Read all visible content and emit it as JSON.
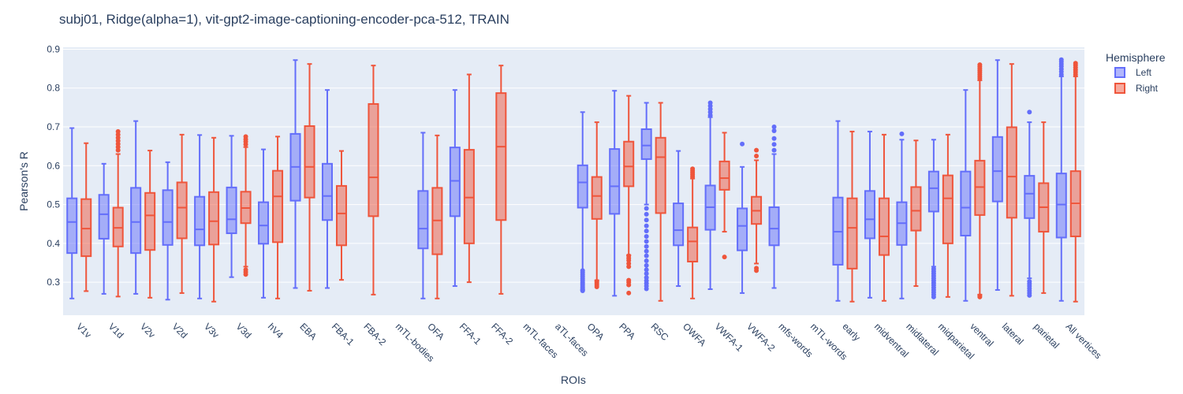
{
  "chart_data": {
    "type": "box",
    "title": "subj01, Ridge(alpha=1), vit-gpt2-image-captioning-encoder-pca-512, TRAIN",
    "xlabel": "ROIs",
    "ylabel": "Pearson's R",
    "ylim": [
      0.215,
      0.905
    ],
    "yticks": [
      0.3,
      0.4,
      0.5,
      0.6,
      0.7,
      0.8,
      0.9
    ],
    "ytick_labels": [
      "0.3",
      "0.4",
      "0.5",
      "0.6",
      "0.7",
      "0.8",
      "0.9"
    ],
    "grid": true,
    "legend_position": "top-right",
    "legend_title": "Hemisphere",
    "categories": [
      "V1v",
      "V1d",
      "V2v",
      "V2d",
      "V3v",
      "V3d",
      "hV4",
      "EBA",
      "FBA-1",
      "FBA-2",
      "mTL-bodies",
      "OFA",
      "FFA-1",
      "FFA-2",
      "mTL-faces",
      "aTL-faces",
      "OPA",
      "PPA",
      "RSC",
      "OWFA",
      "VWFA-1",
      "VWFA-2",
      "mfs-words",
      "mTL-words",
      "early",
      "midventral",
      "midlateral",
      "midparietal",
      "ventral",
      "lateral",
      "parietal",
      "All vertices"
    ],
    "series": [
      {
        "name": "Left",
        "color": "#636efa",
        "fill": "rgba(99,110,250,0.5)",
        "boxes": [
          {
            "min": 0.258,
            "q1": 0.375,
            "median": 0.455,
            "q3": 0.516,
            "max": 0.697,
            "outliers": []
          },
          {
            "min": 0.27,
            "q1": 0.412,
            "median": 0.475,
            "q3": 0.525,
            "max": 0.605,
            "outliers": []
          },
          {
            "min": 0.27,
            "q1": 0.375,
            "median": 0.455,
            "q3": 0.543,
            "max": 0.715,
            "outliers": []
          },
          {
            "min": 0.255,
            "q1": 0.396,
            "median": 0.455,
            "q3": 0.537,
            "max": 0.609,
            "outliers": []
          },
          {
            "min": 0.258,
            "q1": 0.395,
            "median": 0.436,
            "q3": 0.52,
            "max": 0.679,
            "outliers": []
          },
          {
            "min": 0.313,
            "q1": 0.426,
            "median": 0.462,
            "q3": 0.544,
            "max": 0.677,
            "outliers": []
          },
          {
            "min": 0.26,
            "q1": 0.399,
            "median": 0.446,
            "q3": 0.506,
            "max": 0.642,
            "outliers": []
          },
          {
            "min": 0.285,
            "q1": 0.51,
            "median": 0.597,
            "q3": 0.682,
            "max": 0.872,
            "outliers": []
          },
          {
            "min": 0.285,
            "q1": 0.46,
            "median": 0.522,
            "q3": 0.605,
            "max": 0.795,
            "outliers": []
          },
          null,
          null,
          {
            "min": 0.258,
            "q1": 0.387,
            "median": 0.438,
            "q3": 0.535,
            "max": 0.685,
            "outliers": []
          },
          {
            "min": 0.29,
            "q1": 0.47,
            "median": 0.561,
            "q3": 0.647,
            "max": 0.795,
            "outliers": []
          },
          null,
          null,
          null,
          {
            "min": 0.28,
            "q1": 0.492,
            "median": 0.557,
            "q3": 0.601,
            "max": 0.738,
            "outliers": [
              0.278,
              0.282,
              0.285,
              0.288,
              0.292,
              0.296,
              0.3,
              0.305,
              0.31,
              0.315,
              0.32,
              0.325,
              0.33
            ]
          },
          {
            "min": 0.265,
            "q1": 0.476,
            "median": 0.547,
            "q3": 0.643,
            "max": 0.793,
            "outliers": []
          },
          {
            "min": 0.5,
            "q1": 0.617,
            "median": 0.652,
            "q3": 0.694,
            "max": 0.762,
            "outliers": [
              0.283,
              0.29,
              0.297,
              0.304,
              0.312,
              0.322,
              0.332,
              0.343,
              0.355,
              0.368,
              0.38,
              0.392,
              0.405,
              0.418,
              0.432,
              0.445,
              0.46,
              0.475,
              0.49
            ]
          },
          {
            "min": 0.29,
            "q1": 0.395,
            "median": 0.434,
            "q3": 0.503,
            "max": 0.638,
            "outliers": []
          },
          {
            "min": 0.282,
            "q1": 0.435,
            "median": 0.493,
            "q3": 0.549,
            "max": 0.725,
            "outliers": [
              0.73,
              0.738,
              0.746,
              0.754,
              0.762
            ]
          },
          {
            "min": 0.272,
            "q1": 0.382,
            "median": 0.445,
            "q3": 0.49,
            "max": 0.597,
            "outliers": [
              0.656
            ]
          },
          {
            "min": 0.285,
            "q1": 0.395,
            "median": 0.438,
            "q3": 0.493,
            "max": 0.63,
            "outliers": [
              0.64,
              0.655,
              0.67,
              0.69,
              0.7
            ]
          },
          null,
          {
            "min": 0.252,
            "q1": 0.345,
            "median": 0.43,
            "q3": 0.518,
            "max": 0.715,
            "outliers": []
          },
          {
            "min": 0.26,
            "q1": 0.413,
            "median": 0.462,
            "q3": 0.535,
            "max": 0.688,
            "outliers": []
          },
          {
            "min": 0.258,
            "q1": 0.396,
            "median": 0.452,
            "q3": 0.506,
            "max": 0.667,
            "outliers": [
              0.682
            ]
          },
          {
            "min": 0.34,
            "q1": 0.482,
            "median": 0.542,
            "q3": 0.585,
            "max": 0.667,
            "outliers": [
              0.262,
              0.268,
              0.274,
              0.28,
              0.286,
              0.292,
              0.298,
              0.304,
              0.31,
              0.316,
              0.322,
              0.328,
              0.334
            ]
          },
          {
            "min": 0.252,
            "q1": 0.42,
            "median": 0.492,
            "q3": 0.585,
            "max": 0.795,
            "outliers": []
          },
          {
            "min": 0.28,
            "q1": 0.508,
            "median": 0.586,
            "q3": 0.674,
            "max": 0.872,
            "outliers": []
          },
          {
            "min": 0.31,
            "q1": 0.465,
            "median": 0.528,
            "q3": 0.574,
            "max": 0.712,
            "outliers": [
              0.266,
              0.272,
              0.278,
              0.284,
              0.29,
              0.296,
              0.302,
              0.738
            ]
          },
          {
            "min": 0.252,
            "q1": 0.415,
            "median": 0.5,
            "q3": 0.58,
            "max": 0.83,
            "outliers": [
              0.835,
              0.842,
              0.849,
              0.856,
              0.862,
              0.868,
              0.873
            ]
          }
        ]
      },
      {
        "name": "Right",
        "color": "#ef553b",
        "fill": "rgba(239,85,59,0.5)",
        "boxes": [
          {
            "min": 0.277,
            "q1": 0.367,
            "median": 0.438,
            "q3": 0.514,
            "max": 0.658,
            "outliers": []
          },
          {
            "min": 0.263,
            "q1": 0.392,
            "median": 0.44,
            "q3": 0.492,
            "max": 0.63,
            "outliers": [
              0.64,
              0.648,
              0.656,
              0.664,
              0.672,
              0.68,
              0.688
            ]
          },
          {
            "min": 0.26,
            "q1": 0.383,
            "median": 0.472,
            "q3": 0.53,
            "max": 0.639,
            "outliers": []
          },
          {
            "min": 0.272,
            "q1": 0.413,
            "median": 0.492,
            "q3": 0.557,
            "max": 0.68,
            "outliers": []
          },
          {
            "min": 0.25,
            "q1": 0.397,
            "median": 0.457,
            "q3": 0.532,
            "max": 0.672,
            "outliers": []
          },
          {
            "min": 0.34,
            "q1": 0.452,
            "median": 0.491,
            "q3": 0.533,
            "max": 0.648,
            "outliers": [
              0.32,
              0.326,
              0.332,
              0.655,
              0.662,
              0.668,
              0.675
            ]
          },
          {
            "min": 0.258,
            "q1": 0.403,
            "median": 0.521,
            "q3": 0.587,
            "max": 0.675,
            "outliers": []
          },
          {
            "min": 0.278,
            "q1": 0.518,
            "median": 0.597,
            "q3": 0.702,
            "max": 0.862,
            "outliers": []
          },
          {
            "min": 0.306,
            "q1": 0.395,
            "median": 0.477,
            "q3": 0.548,
            "max": 0.638,
            "outliers": []
          },
          {
            "min": 0.268,
            "q1": 0.47,
            "median": 0.57,
            "q3": 0.759,
            "max": 0.858,
            "outliers": []
          },
          null,
          {
            "min": 0.258,
            "q1": 0.372,
            "median": 0.459,
            "q3": 0.543,
            "max": 0.678,
            "outliers": []
          },
          {
            "min": 0.3,
            "q1": 0.4,
            "median": 0.518,
            "q3": 0.641,
            "max": 0.835,
            "outliers": []
          },
          {
            "min": 0.27,
            "q1": 0.46,
            "median": 0.649,
            "q3": 0.787,
            "max": 0.858,
            "outliers": []
          },
          null,
          null,
          {
            "min": 0.305,
            "q1": 0.463,
            "median": 0.522,
            "q3": 0.571,
            "max": 0.712,
            "outliers": [
              0.288,
              0.293,
              0.298,
              0.302
            ]
          },
          {
            "min": 0.37,
            "q1": 0.547,
            "median": 0.598,
            "q3": 0.662,
            "max": 0.78,
            "outliers": [
              0.272,
              0.293,
              0.3,
              0.305,
              0.34,
              0.348,
              0.356,
              0.362,
              0.368
            ]
          },
          {
            "min": 0.252,
            "q1": 0.478,
            "median": 0.622,
            "q3": 0.672,
            "max": 0.762,
            "outliers": []
          },
          {
            "min": 0.258,
            "q1": 0.353,
            "median": 0.405,
            "q3": 0.441,
            "max": 0.567,
            "outliers": [
              0.572,
              0.577,
              0.582,
              0.587,
              0.592
            ]
          },
          {
            "min": 0.43,
            "q1": 0.538,
            "median": 0.568,
            "q3": 0.611,
            "max": 0.685,
            "outliers": [
              0.365
            ]
          },
          {
            "min": 0.348,
            "q1": 0.45,
            "median": 0.484,
            "q3": 0.52,
            "max": 0.614,
            "outliers": [
              0.33,
              0.336,
              0.625,
              0.64
            ]
          },
          null,
          null,
          {
            "min": 0.25,
            "q1": 0.335,
            "median": 0.44,
            "q3": 0.516,
            "max": 0.688,
            "outliers": []
          },
          {
            "min": 0.252,
            "q1": 0.37,
            "median": 0.418,
            "q3": 0.516,
            "max": 0.68,
            "outliers": []
          },
          {
            "min": 0.29,
            "q1": 0.433,
            "median": 0.484,
            "q3": 0.545,
            "max": 0.665,
            "outliers": []
          },
          {
            "min": 0.262,
            "q1": 0.4,
            "median": 0.516,
            "q3": 0.575,
            "max": 0.68,
            "outliers": []
          },
          {
            "min": 0.268,
            "q1": 0.473,
            "median": 0.545,
            "q3": 0.613,
            "max": 0.82,
            "outliers": [
              0.262,
              0.265,
              0.825,
              0.83,
              0.835,
              0.84,
              0.845,
              0.85,
              0.855,
              0.86
            ]
          },
          {
            "min": 0.265,
            "q1": 0.466,
            "median": 0.572,
            "q3": 0.699,
            "max": 0.862,
            "outliers": []
          },
          {
            "min": 0.272,
            "q1": 0.43,
            "median": 0.493,
            "q3": 0.555,
            "max": 0.712,
            "outliers": []
          },
          {
            "min": 0.25,
            "q1": 0.418,
            "median": 0.503,
            "q3": 0.586,
            "max": 0.83,
            "outliers": [
              0.835,
              0.841,
              0.847,
              0.853,
              0.859,
              0.864
            ]
          }
        ]
      }
    ]
  }
}
